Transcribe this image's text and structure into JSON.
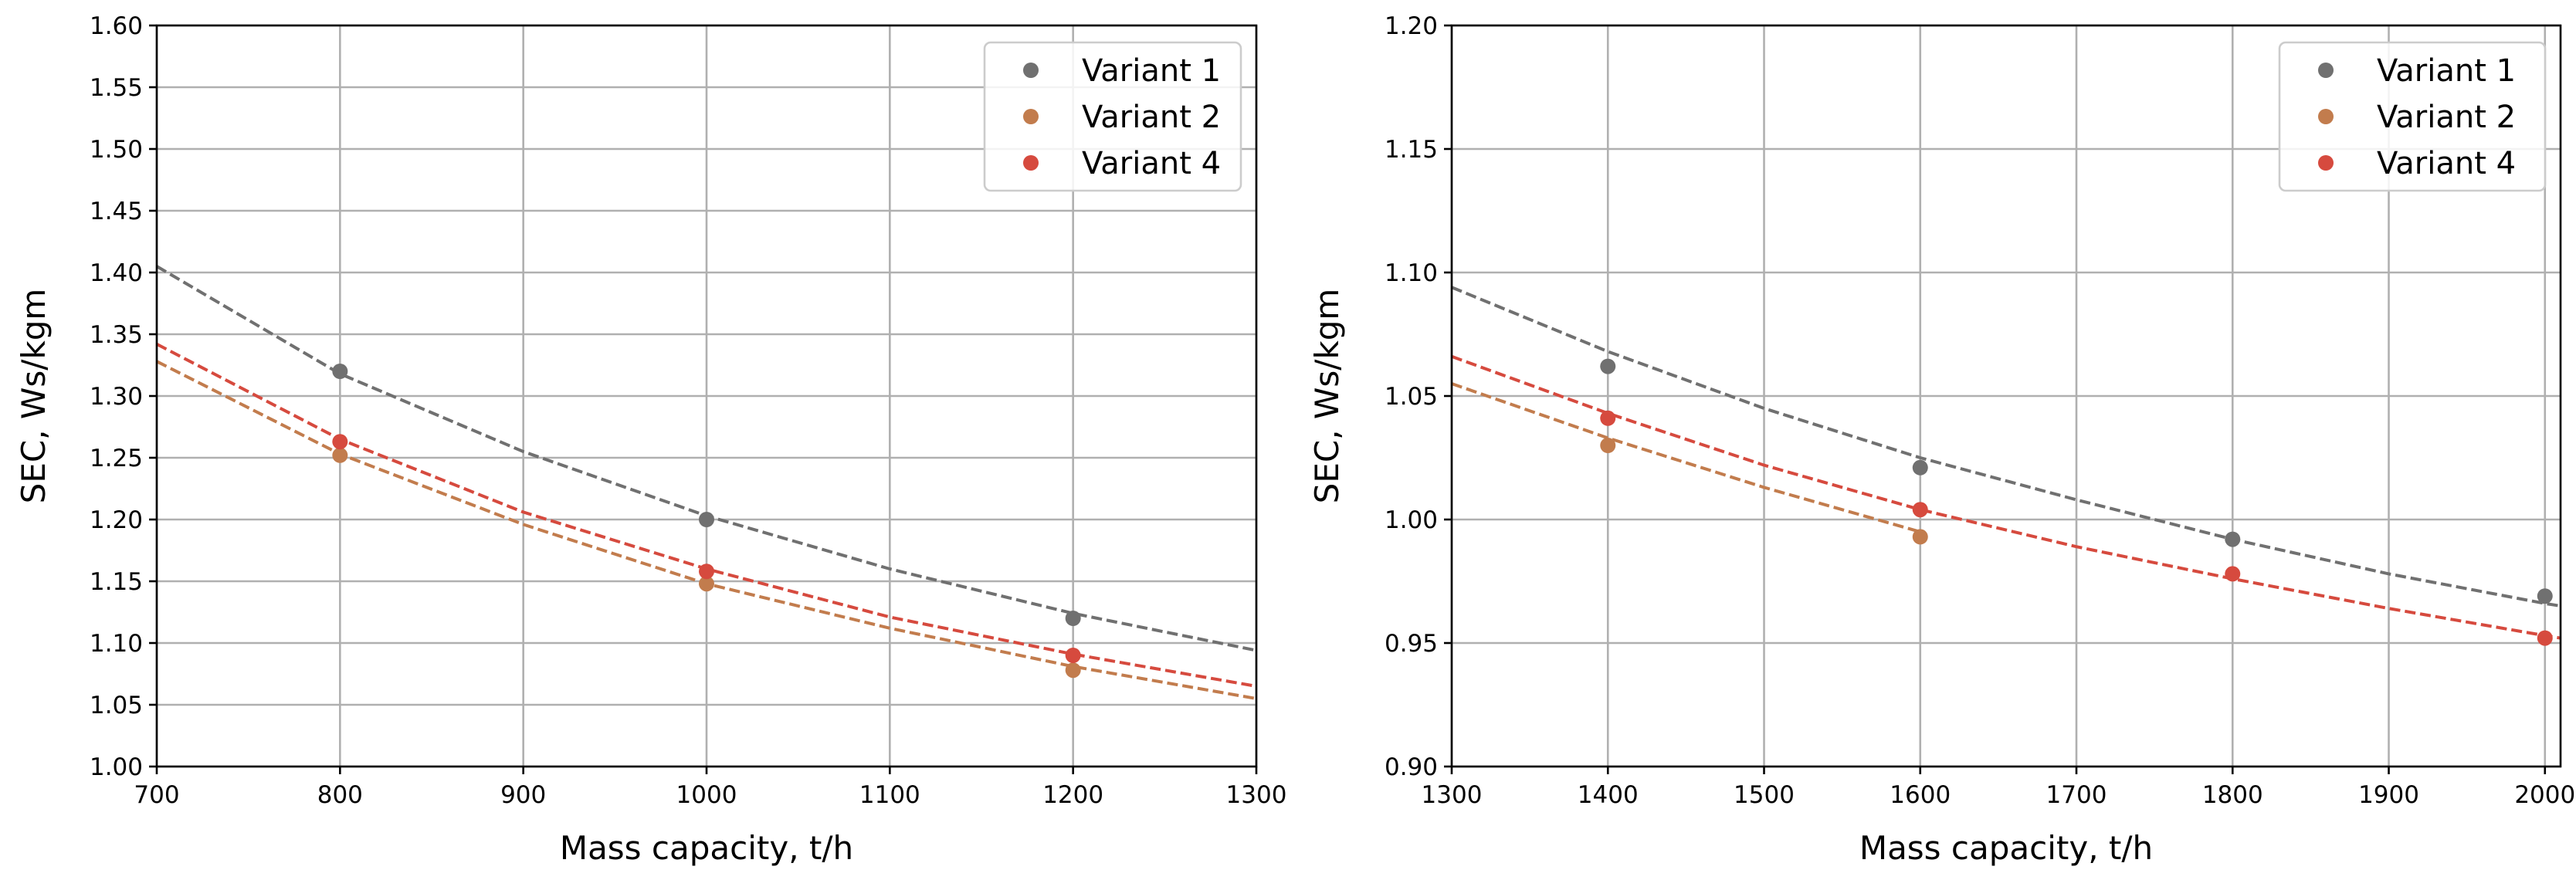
{
  "chart_data": [
    {
      "type": "scatter",
      "xlabel": "Mass capacity, t/h",
      "ylabel": "SEC, Ws/kgm",
      "xlim": [
        700,
        1300
      ],
      "ylim": [
        1.0,
        1.6
      ],
      "x_ticks": [
        700,
        800,
        900,
        1000,
        1100,
        1200,
        1300
      ],
      "y_ticks": [
        1.0,
        1.05,
        1.1,
        1.15,
        1.2,
        1.25,
        1.3,
        1.35,
        1.4,
        1.45,
        1.5,
        1.55,
        1.6
      ],
      "x_tick_labels": [
        "700",
        "800",
        "900",
        "1000",
        "1100",
        "1200",
        "1300"
      ],
      "y_tick_labels": [
        "1.00",
        "1.05",
        "1.10",
        "1.15",
        "1.20",
        "1.25",
        "1.30",
        "1.35",
        "1.40",
        "1.45",
        "1.50",
        "1.55",
        "1.60"
      ],
      "grid": true,
      "legend_position": "top-right",
      "series": [
        {
          "name": "Variant 1",
          "color": "#707070",
          "points": [
            {
              "x": 800,
              "y": 1.32
            },
            {
              "x": 1000,
              "y": 1.2
            },
            {
              "x": 1200,
              "y": 1.12
            }
          ],
          "fit": [
            {
              "x": 700,
              "y": 1.405
            },
            {
              "x": 800,
              "y": 1.318
            },
            {
              "x": 900,
              "y": 1.255
            },
            {
              "x": 1000,
              "y": 1.203
            },
            {
              "x": 1100,
              "y": 1.16
            },
            {
              "x": 1200,
              "y": 1.124
            },
            {
              "x": 1300,
              "y": 1.094
            }
          ]
        },
        {
          "name": "Variant 2",
          "color": "#c27c4d",
          "points": [
            {
              "x": 800,
              "y": 1.252
            },
            {
              "x": 1000,
              "y": 1.148
            },
            {
              "x": 1200,
              "y": 1.078
            }
          ],
          "fit": [
            {
              "x": 700,
              "y": 1.328
            },
            {
              "x": 800,
              "y": 1.253
            },
            {
              "x": 900,
              "y": 1.196
            },
            {
              "x": 1000,
              "y": 1.148
            },
            {
              "x": 1100,
              "y": 1.112
            },
            {
              "x": 1200,
              "y": 1.081
            },
            {
              "x": 1300,
              "y": 1.055
            }
          ]
        },
        {
          "name": "Variant 4",
          "color": "#d64a3e",
          "points": [
            {
              "x": 800,
              "y": 1.263
            },
            {
              "x": 1000,
              "y": 1.158
            },
            {
              "x": 1200,
              "y": 1.09
            }
          ],
          "fit": [
            {
              "x": 700,
              "y": 1.342
            },
            {
              "x": 800,
              "y": 1.265
            },
            {
              "x": 900,
              "y": 1.206
            },
            {
              "x": 1000,
              "y": 1.16
            },
            {
              "x": 1100,
              "y": 1.121
            },
            {
              "x": 1200,
              "y": 1.091
            },
            {
              "x": 1300,
              "y": 1.065
            }
          ]
        }
      ]
    },
    {
      "type": "scatter",
      "xlabel": "Mass capacity, t/h",
      "ylabel": "SEC, Ws/kgm",
      "xlim": [
        1300,
        2010
      ],
      "ylim": [
        0.9,
        1.2
      ],
      "x_ticks": [
        1300,
        1400,
        1500,
        1600,
        1700,
        1800,
        1900,
        2000
      ],
      "y_ticks": [
        0.9,
        0.95,
        1.0,
        1.05,
        1.1,
        1.15,
        1.2
      ],
      "x_tick_labels": [
        "1300",
        "1400",
        "1500",
        "1600",
        "1700",
        "1800",
        "1900",
        "2000"
      ],
      "y_tick_labels": [
        "0.90",
        "0.95",
        "1.00",
        "1.05",
        "1.10",
        "1.15",
        "1.20"
      ],
      "grid": true,
      "legend_position": "top-right",
      "series": [
        {
          "name": "Variant 1",
          "color": "#707070",
          "points": [
            {
              "x": 1400,
              "y": 1.062
            },
            {
              "x": 1600,
              "y": 1.021
            },
            {
              "x": 1800,
              "y": 0.992
            },
            {
              "x": 2000,
              "y": 0.969
            }
          ],
          "fit": [
            {
              "x": 1300,
              "y": 1.094
            },
            {
              "x": 1400,
              "y": 1.068
            },
            {
              "x": 1500,
              "y": 1.045
            },
            {
              "x": 1600,
              "y": 1.025
            },
            {
              "x": 1700,
              "y": 1.008
            },
            {
              "x": 1800,
              "y": 0.992
            },
            {
              "x": 1900,
              "y": 0.978
            },
            {
              "x": 2000,
              "y": 0.966
            },
            {
              "x": 2010,
              "y": 0.965
            }
          ]
        },
        {
          "name": "Variant 2",
          "color": "#c27c4d",
          "points": [
            {
              "x": 1400,
              "y": 1.03
            },
            {
              "x": 1600,
              "y": 0.993
            }
          ],
          "fit": [
            {
              "x": 1300,
              "y": 1.055
            },
            {
              "x": 1400,
              "y": 1.033
            },
            {
              "x": 1500,
              "y": 1.013
            },
            {
              "x": 1600,
              "y": 0.995
            }
          ]
        },
        {
          "name": "Variant 4",
          "color": "#d64a3e",
          "points": [
            {
              "x": 1400,
              "y": 1.041
            },
            {
              "x": 1600,
              "y": 1.004
            },
            {
              "x": 1800,
              "y": 0.978
            },
            {
              "x": 2000,
              "y": 0.952
            }
          ],
          "fit": [
            {
              "x": 1300,
              "y": 1.066
            },
            {
              "x": 1400,
              "y": 1.043
            },
            {
              "x": 1500,
              "y": 1.022
            },
            {
              "x": 1600,
              "y": 1.004
            },
            {
              "x": 1700,
              "y": 0.989
            },
            {
              "x": 1800,
              "y": 0.976
            },
            {
              "x": 1900,
              "y": 0.964
            },
            {
              "x": 2000,
              "y": 0.953
            },
            {
              "x": 2010,
              "y": 0.952
            }
          ]
        }
      ]
    }
  ]
}
